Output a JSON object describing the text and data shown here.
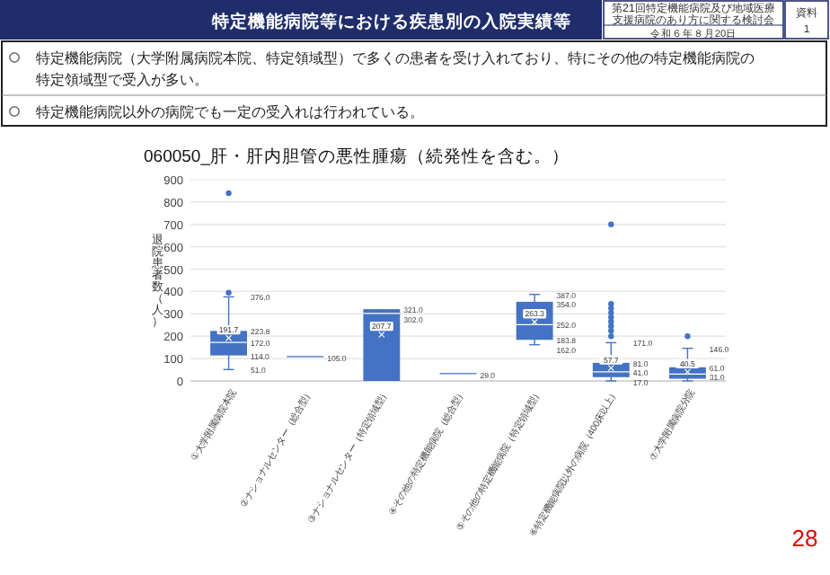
{
  "chart_data": {
    "type": "box",
    "title": "060050_肝・肝内胆管の悪性腫瘍（続発性を含む。）",
    "ylabel": "退院患者数（人）",
    "categories": [
      "①大学附属病院本院",
      "②ナショナルセンター（総合型）",
      "③ナショナルセンター（特定領域型）",
      "④その他の特定機能病院（総合型）",
      "⑤その他の特定機能病院（特定領域型）",
      "⑥特定機能病院以外の病院（400床以上）",
      "⑦大学附属病院分院"
    ],
    "boxes": [
      {
        "low": 51,
        "q1": 114,
        "median": 172,
        "q3": 223.8,
        "high": 376,
        "mean": 191.7,
        "outliers": [
          840,
          395
        ]
      },
      {
        "low": 105,
        "q1": 105,
        "median": 105,
        "q3": 105,
        "high": 105
      },
      {
        "low": 0,
        "q1": 0,
        "median": 302,
        "q3": 321,
        "high": 321,
        "mean": 207.7
      },
      {
        "low": 29,
        "q1": 29,
        "median": 29,
        "q3": 29,
        "high": 29
      },
      {
        "low": 162,
        "q1": 183.8,
        "median": 252,
        "q3": 354,
        "high": 387,
        "mean": 263.3
      },
      {
        "low": 0,
        "q1": 17,
        "median": 41,
        "q3": 81,
        "high": 171,
        "mean": 57.7,
        "outliers": [
          700,
          345,
          325,
          305,
          285,
          265,
          245,
          225,
          200
        ]
      },
      {
        "low": 0,
        "q1": 10,
        "median": 31,
        "q3": 61,
        "high": 146,
        "mean": 40.5,
        "outliers": [
          200
        ]
      }
    ],
    "color": "#4472c4",
    "ylim": [
      0,
      900
    ],
    "yticks": [
      0,
      100,
      200,
      300,
      400,
      500,
      600,
      700,
      800,
      900
    ],
    "grid": "y",
    "annotations": [
      "特定機能病院等における疾患別の入院実績等",
      "第21回特定機能病院及び地域医療支援病院のあり方に関する検討会",
      "令和６年８月20日",
      "資料",
      "1",
      "特定機能病院（大学附属病院本院、特定領域型）で多くの患者を受け入れており、特にその他の特定機能病院の特定領域型で受入が多い。",
      "特定機能病院以外の病院でも一定の受入れは行われている。",
      "28",
      {
        "text": "376.0",
        "x": "①大学附属病院本院",
        "y": 376
      },
      {
        "text": "223.8",
        "x": "①大学附属病院本院",
        "y": 223.8
      },
      {
        "text": "191.7",
        "x": "①大学附属病院本院",
        "y": 191.7
      },
      {
        "text": "172.0",
        "x": "①大学附属病院本院",
        "y": 172
      },
      {
        "text": "114.0",
        "x": "①大学附属病院本院",
        "y": 114
      },
      {
        "text": "51.0",
        "x": "①大学附属病院本院",
        "y": 51
      },
      {
        "text": "105.0",
        "x": "②ナショナルセンター（総合型）",
        "y": 105
      },
      {
        "text": "321.0",
        "x": "③ナショナルセンター（特定領域型）",
        "y": 321
      },
      {
        "text": "302.0",
        "x": "③ナショナルセンター（特定領域型）",
        "y": 302
      },
      {
        "text": "207.7",
        "x": "③ナショナルセンター（特定領域型）",
        "y": 207.7
      },
      {
        "text": "29.0",
        "x": "④その他の特定機能病院（総合型）",
        "y": 29
      },
      {
        "text": "387.0",
        "x": "⑤その他の特定機能病院（特定領域型）",
        "y": 387
      },
      {
        "text": "354.0",
        "x": "⑤その他の特定機能病院（特定領域型）",
        "y": 354
      },
      {
        "text": "263.3",
        "x": "⑤その他の特定機能病院（特定領域型）",
        "y": 263.3
      },
      {
        "text": "252.0",
        "x": "⑤その他の特定機能病院（特定領域型）",
        "y": 252
      },
      {
        "text": "183.8",
        "x": "⑤その他の特定機能病院（特定領域型）",
        "y": 183.8
      },
      {
        "text": "162.0",
        "x": "⑤その他の特定機能病院（特定領域型）",
        "y": 162
      },
      {
        "text": "171.0",
        "x": "⑥特定機能病院以外の病院（400床以上）",
        "y": 171
      },
      {
        "text": "81.0",
        "x": "⑥特定機能病院以外の病院（400床以上）",
        "y": 81
      },
      {
        "text": "57.7",
        "x": "⑥特定機能病院以外の病院（400床以上）",
        "y": 57.7
      },
      {
        "text": "41.0",
        "x": "⑥特定機能病院以外の病院（400床以上）",
        "y": 41
      },
      {
        "text": "17.0",
        "x": "⑥特定機能病院以外の病院（400床以上）",
        "y": 17
      },
      {
        "text": "146.0",
        "x": "⑦大学附属病院分院",
        "y": 146
      },
      {
        "text": "61.0",
        "x": "⑦大学附属病院分院",
        "y": 61
      },
      {
        "text": "40.5",
        "x": "⑦大学附属病院分院",
        "y": 40.5
      },
      {
        "text": "31.0",
        "x": "⑦大学附属病院分院",
        "y": 31
      }
    ]
  }
}
